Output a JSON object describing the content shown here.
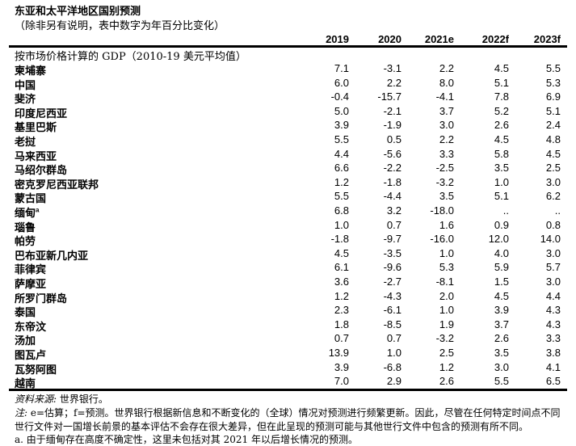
{
  "title": "东亚和太平洋地区国别预测",
  "subtitle": "（除非另有说明，表中数字为年百分比变化）",
  "columns": [
    "2019",
    "2020",
    "2021e",
    "2022f",
    "2023f"
  ],
  "section_label": "按市场价格计算的 GDP（2010-19 美元平均值）",
  "rows": [
    {
      "name": "柬埔寨",
      "values": [
        "7.1",
        "-3.1",
        "2.2",
        "4.5",
        "5.5"
      ]
    },
    {
      "name": "中国",
      "values": [
        "6.0",
        "2.2",
        "8.0",
        "5.1",
        "5.3"
      ]
    },
    {
      "name": "斐济",
      "values": [
        "-0.4",
        "-15.7",
        "-4.1",
        "7.8",
        "6.9"
      ]
    },
    {
      "name": "印度尼西亚",
      "values": [
        "5.0",
        "-2.1",
        "3.7",
        "5.2",
        "5.1"
      ]
    },
    {
      "name": "基里巴斯",
      "values": [
        "3.9",
        "-1.9",
        "3.0",
        "2.6",
        "2.4"
      ]
    },
    {
      "name": "老挝",
      "values": [
        "5.5",
        "0.5",
        "2.2",
        "4.5",
        "4.8"
      ]
    },
    {
      "name": "马来西亚",
      "values": [
        "4.4",
        "-5.6",
        "3.3",
        "5.8",
        "4.5"
      ]
    },
    {
      "name": "马绍尔群岛",
      "values": [
        "6.6",
        "-2.2",
        "-2.5",
        "3.5",
        "2.5"
      ]
    },
    {
      "name": "密克罗尼西亚联邦",
      "values": [
        "1.2",
        "-1.8",
        "-3.2",
        "1.0",
        "3.0"
      ]
    },
    {
      "name": "蒙古国",
      "values": [
        "5.5",
        "-4.4",
        "3.5",
        "5.1",
        "6.2"
      ]
    },
    {
      "name": "缅甸",
      "sup": "a",
      "values": [
        "6.8",
        "3.2",
        "-18.0",
        "..",
        ".."
      ]
    },
    {
      "name": "瑙鲁",
      "values": [
        "1.0",
        "0.7",
        "1.6",
        "0.9",
        "0.8"
      ]
    },
    {
      "name": "帕劳",
      "values": [
        "-1.8",
        "-9.7",
        "-16.0",
        "12.0",
        "14.0"
      ]
    },
    {
      "name": "巴布亚新几内亚",
      "values": [
        "4.5",
        "-3.5",
        "1.0",
        "4.0",
        "3.0"
      ]
    },
    {
      "name": "菲律宾",
      "values": [
        "6.1",
        "-9.6",
        "5.3",
        "5.9",
        "5.7"
      ]
    },
    {
      "name": "萨摩亚",
      "values": [
        "3.6",
        "-2.7",
        "-8.1",
        "1.5",
        "3.0"
      ]
    },
    {
      "name": "所罗门群岛",
      "values": [
        "1.2",
        "-4.3",
        "2.0",
        "4.5",
        "4.4"
      ]
    },
    {
      "name": "泰国",
      "values": [
        "2.3",
        "-6.1",
        "1.0",
        "3.9",
        "4.3"
      ]
    },
    {
      "name": "东帝汶",
      "values": [
        "1.8",
        "-8.5",
        "1.9",
        "3.7",
        "4.3"
      ]
    },
    {
      "name": "汤加",
      "values": [
        "0.7",
        "0.7",
        "-3.2",
        "2.6",
        "3.3"
      ]
    },
    {
      "name": "图瓦卢",
      "values": [
        "13.9",
        "1.0",
        "2.5",
        "3.5",
        "3.8"
      ]
    },
    {
      "name": "瓦努阿图",
      "values": [
        "3.9",
        "-6.8",
        "1.2",
        "3.0",
        "4.1"
      ]
    },
    {
      "name": "越南",
      "values": [
        "7.0",
        "2.9",
        "2.6",
        "5.5",
        "6.5"
      ]
    }
  ],
  "notes": {
    "source_label": "资料来源:",
    "source_text": " 世界银行。",
    "note_label": "注:",
    "note_line1": " e=估算；f=预测。世界银行根据新信息和不断变化的（全球）情况对预测进行频繁更新。因此，尽管在任何特定时间点不同",
    "note_line2": "世行文件对一国增长前景的基本评估不会存在很大差异，但在此呈现的预测可能与其他世行文件中包含的预测有所不同。",
    "footnote_a": "a. 由于缅甸存在高度不确定性，这里未包括对其 2021 年以后增长情况的预测。"
  }
}
